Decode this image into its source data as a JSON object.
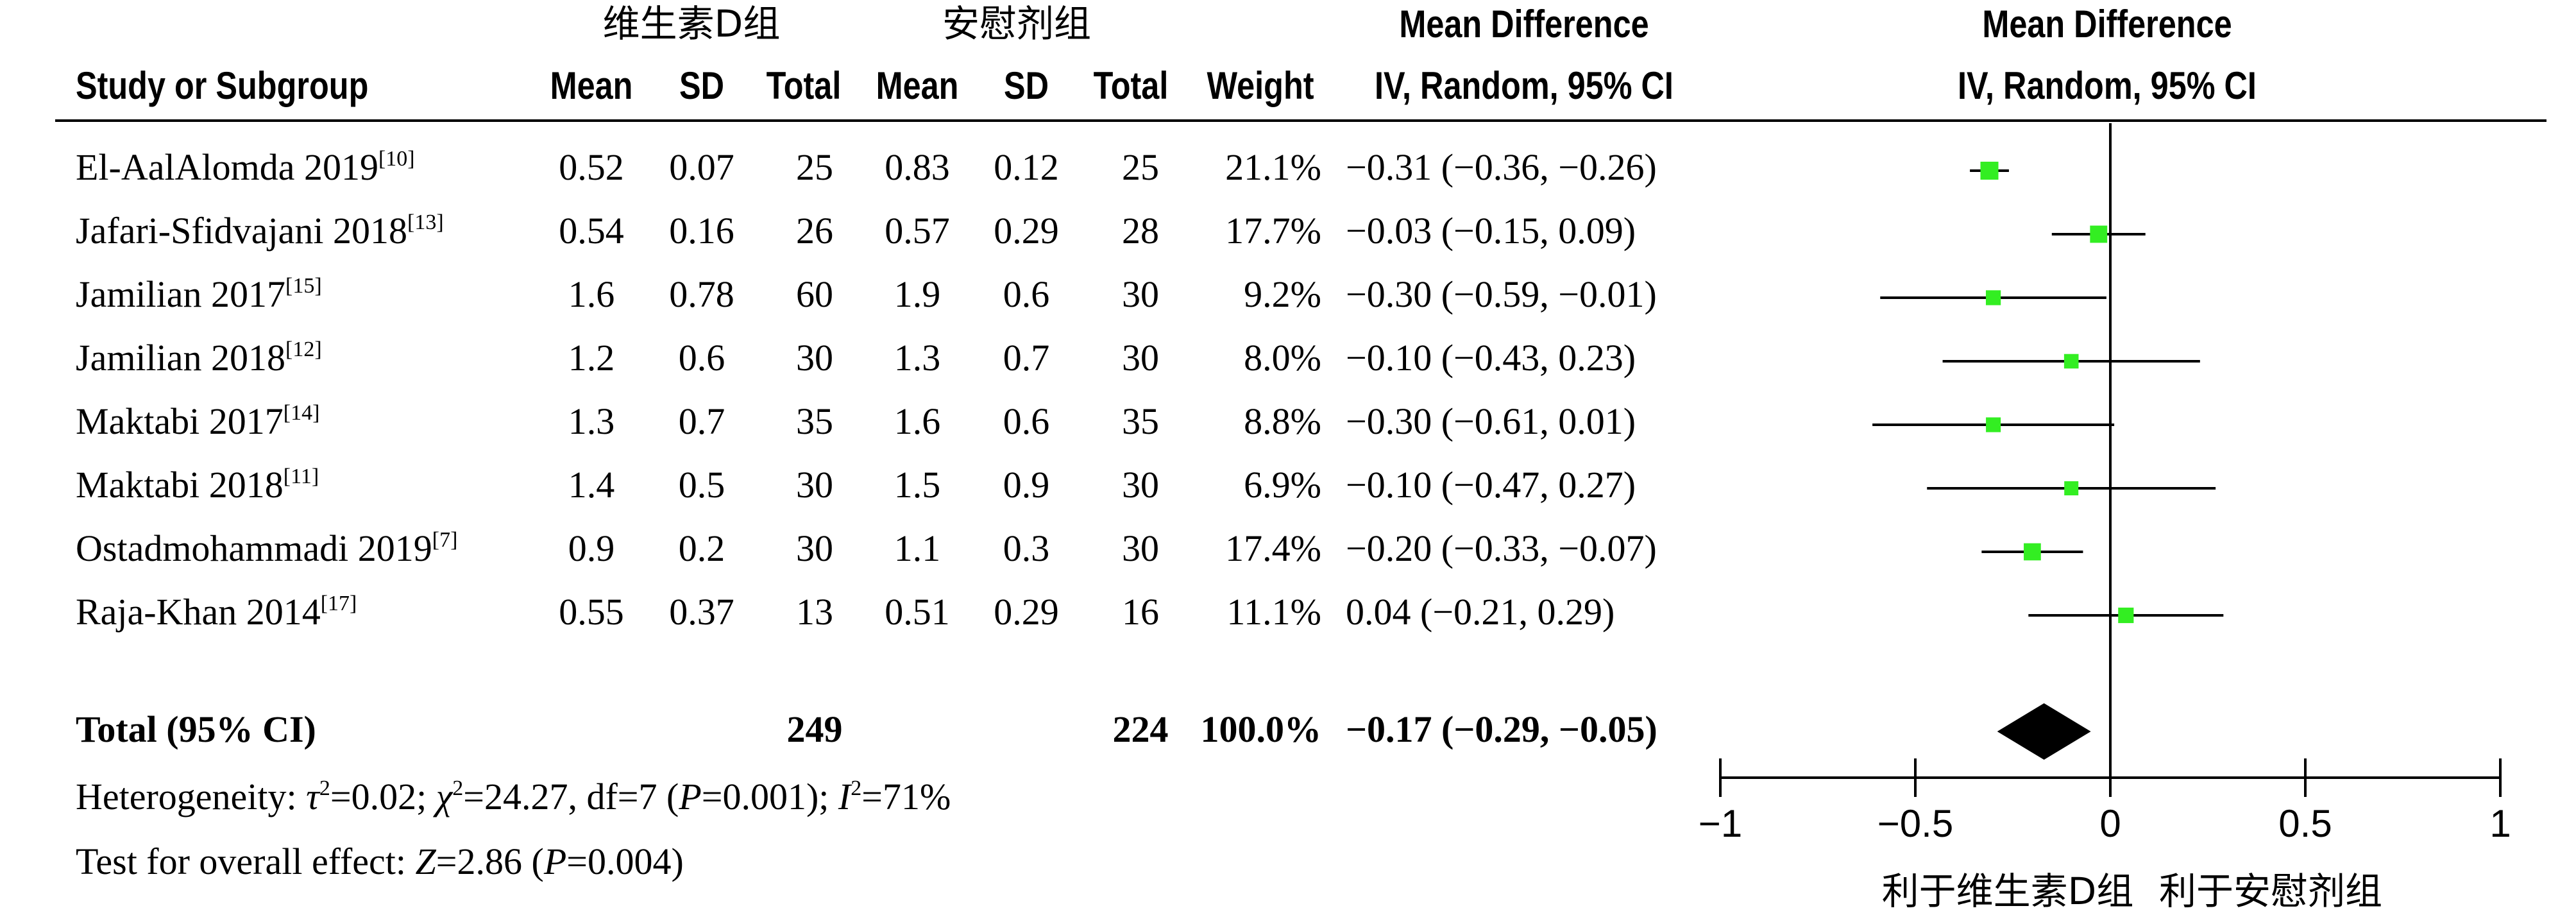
{
  "header": {
    "group1": "维生素D组",
    "group2": "安慰剂组",
    "col_study": "Study or Subgroup",
    "col_mean1": "Mean",
    "col_sd1": "SD",
    "col_total1": "Total",
    "col_mean2": "Mean",
    "col_sd2": "SD",
    "col_total2": "Total",
    "col_weight": "Weight",
    "col_md_title": "Mean Difference",
    "col_md_sub": "IV, Random, 95% CI",
    "plot_title": "Mean Difference",
    "plot_sub": "IV, Random, 95% CI"
  },
  "studies": [
    {
      "name": "El-AalAlomda 2019",
      "ref": "[10]",
      "mean1": "0.52",
      "sd1": "0.07",
      "n1": "25",
      "mean2": "0.83",
      "sd2": "0.12",
      "n2": "25",
      "weight": "21.1%",
      "ci": "−0.31 (−0.36, −0.26)"
    },
    {
      "name": "Jafari-Sfidvajani 2018",
      "ref": "[13]",
      "mean1": "0.54",
      "sd1": "0.16",
      "n1": "26",
      "mean2": "0.57",
      "sd2": "0.29",
      "n2": "28",
      "weight": "17.7%",
      "ci": "−0.03 (−0.15, 0.09)"
    },
    {
      "name": "Jamilian 2017",
      "ref": "[15]",
      "mean1": "1.6",
      "sd1": "0.78",
      "n1": "60",
      "mean2": "1.9",
      "sd2": "0.6",
      "n2": "30",
      "weight": "9.2%",
      "ci": "−0.30 (−0.59, −0.01)"
    },
    {
      "name": "Jamilian 2018",
      "ref": "[12]",
      "mean1": "1.2",
      "sd1": "0.6",
      "n1": "30",
      "mean2": "1.3",
      "sd2": "0.7",
      "n2": "30",
      "weight": "8.0%",
      "ci": "−0.10 (−0.43, 0.23)"
    },
    {
      "name": "Maktabi 2017",
      "ref": "[14]",
      "mean1": "1.3",
      "sd1": "0.7",
      "n1": "35",
      "mean2": "1.6",
      "sd2": "0.6",
      "n2": "35",
      "weight": "8.8%",
      "ci": "−0.30 (−0.61, 0.01)"
    },
    {
      "name": "Maktabi 2018",
      "ref": "[11]",
      "mean1": "1.4",
      "sd1": "0.5",
      "n1": "30",
      "mean2": "1.5",
      "sd2": "0.9",
      "n2": "30",
      "weight": "6.9%",
      "ci": "−0.10 (−0.47, 0.27)"
    },
    {
      "name": "Ostadmohammadi 2019",
      "ref": "[7]",
      "mean1": "0.9",
      "sd1": "0.2",
      "n1": "30",
      "mean2": "1.1",
      "sd2": "0.3",
      "n2": "30",
      "weight": "17.4%",
      "ci": "−0.20 (−0.33, −0.07)"
    },
    {
      "name": "Raja-Khan 2014",
      "ref": "[17]",
      "mean1": "0.55",
      "sd1": "0.37",
      "n1": "13",
      "mean2": "0.51",
      "sd2": "0.29",
      "n2": "16",
      "weight": "11.1%",
      "ci": "0.04 (−0.21, 0.29)"
    }
  ],
  "total": {
    "label": "Total (95% CI)",
    "n1": "249",
    "n2": "224",
    "weight": "100.0%",
    "ci": "−0.17 (−0.29, −0.05)"
  },
  "heterogeneity": {
    "label": "Heterogeneity: ",
    "tau_sym": "τ",
    "tau_val": "=0.02; ",
    "chi_sym": "χ",
    "chi_val": "=24.27, df=7 (",
    "p_sym": "P",
    "p_val": "=0.001); ",
    "i_sym": "I",
    "i_val": "=71%",
    "sq": "2"
  },
  "overall": {
    "label": "Test for overall effect: ",
    "z_sym": "Z",
    "z_val": "=2.86 (",
    "p_sym": "P",
    "p_val": "=0.004)"
  },
  "chart_data": {
    "type": "scatter",
    "title": "Mean Difference",
    "subtitle": "IV, Random, 95% CI",
    "xlim": [
      -1,
      1
    ],
    "ticks": [
      "−1",
      "−0.5",
      "0",
      "0.5",
      "1"
    ],
    "tick_values": [
      -1,
      -0.5,
      0,
      0.5,
      1
    ],
    "xlabel_left": "利于维生素D组",
    "xlabel_right": "利于安慰剂组",
    "marker_color": "#33ee22",
    "points": [
      {
        "estimate": -0.31,
        "lower": -0.36,
        "upper": -0.26,
        "weight": 21.1
      },
      {
        "estimate": -0.03,
        "lower": -0.15,
        "upper": 0.09,
        "weight": 17.7
      },
      {
        "estimate": -0.3,
        "lower": -0.59,
        "upper": -0.01,
        "weight": 9.2
      },
      {
        "estimate": -0.1,
        "lower": -0.43,
        "upper": 0.23,
        "weight": 8.0
      },
      {
        "estimate": -0.3,
        "lower": -0.61,
        "upper": 0.01,
        "weight": 8.8
      },
      {
        "estimate": -0.1,
        "lower": -0.47,
        "upper": 0.27,
        "weight": 6.9
      },
      {
        "estimate": -0.2,
        "lower": -0.33,
        "upper": -0.07,
        "weight": 17.4
      },
      {
        "estimate": 0.04,
        "lower": -0.21,
        "upper": 0.29,
        "weight": 11.1
      }
    ],
    "pooled": {
      "estimate": -0.17,
      "lower": -0.29,
      "upper": -0.05
    }
  }
}
